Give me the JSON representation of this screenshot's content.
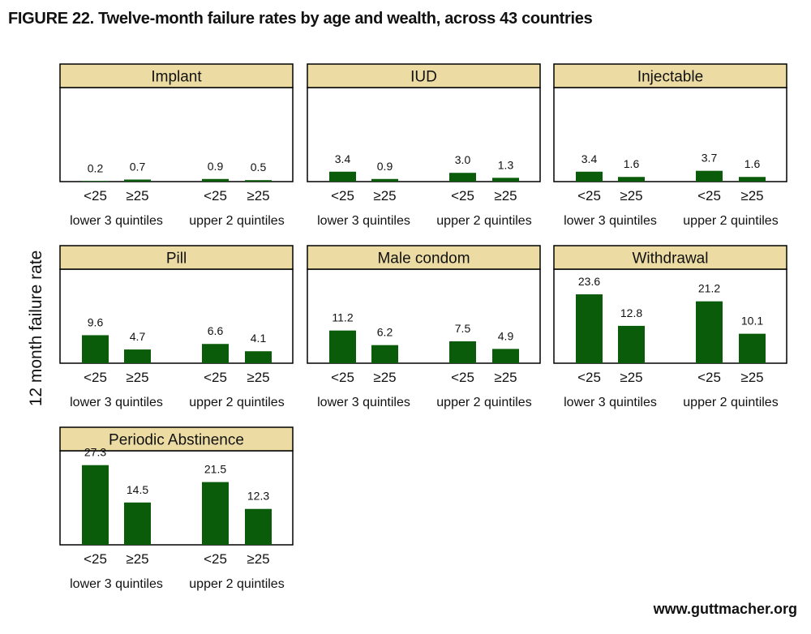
{
  "title": "FIGURE 22. Twelve-month failure rates by age and wealth, across 43 countries",
  "ylabel": "12 month failure rate",
  "footer": "www.guttmacher.org",
  "chart_data": {
    "type": "bar",
    "bar_color": "#0a5c0a",
    "strip_color": "#ecdca4",
    "ylim": [
      0,
      30
    ],
    "categories": [
      "<25",
      "≥25",
      "<25",
      "≥25"
    ],
    "groups": [
      "lower 3 quintiles",
      "upper 2 quintiles"
    ],
    "panels": [
      {
        "title": "Implant",
        "values": [
          0.2,
          0.7,
          0.9,
          0.5
        ],
        "labels": [
          "0.2",
          "0.7",
          "0.9",
          "0.5"
        ]
      },
      {
        "title": "IUD",
        "values": [
          3.4,
          0.9,
          3.0,
          1.3
        ],
        "labels": [
          "3.4",
          "0.9",
          "3.0",
          "1.3"
        ]
      },
      {
        "title": "Injectable",
        "values": [
          3.4,
          1.6,
          3.7,
          1.6
        ],
        "labels": [
          "3.4",
          "1.6",
          "3.7",
          "1.6"
        ]
      },
      {
        "title": "Pill",
        "values": [
          9.6,
          4.7,
          6.6,
          4.1
        ],
        "labels": [
          "9.6",
          "4.7",
          "6.6",
          "4.1"
        ]
      },
      {
        "title": "Male condom",
        "values": [
          11.2,
          6.2,
          7.5,
          4.9
        ],
        "labels": [
          "11.2",
          "6.2",
          "7.5",
          "4.9"
        ]
      },
      {
        "title": "Withdrawal",
        "values": [
          23.6,
          12.8,
          21.2,
          10.1
        ],
        "labels": [
          "23.6",
          "12.8",
          "21.2",
          "10.1"
        ]
      },
      {
        "title": "Periodic Abstinence",
        "values": [
          27.3,
          14.5,
          21.5,
          12.3
        ],
        "labels": [
          "27.3",
          "14.5",
          "21.5",
          "12.3"
        ]
      }
    ]
  }
}
